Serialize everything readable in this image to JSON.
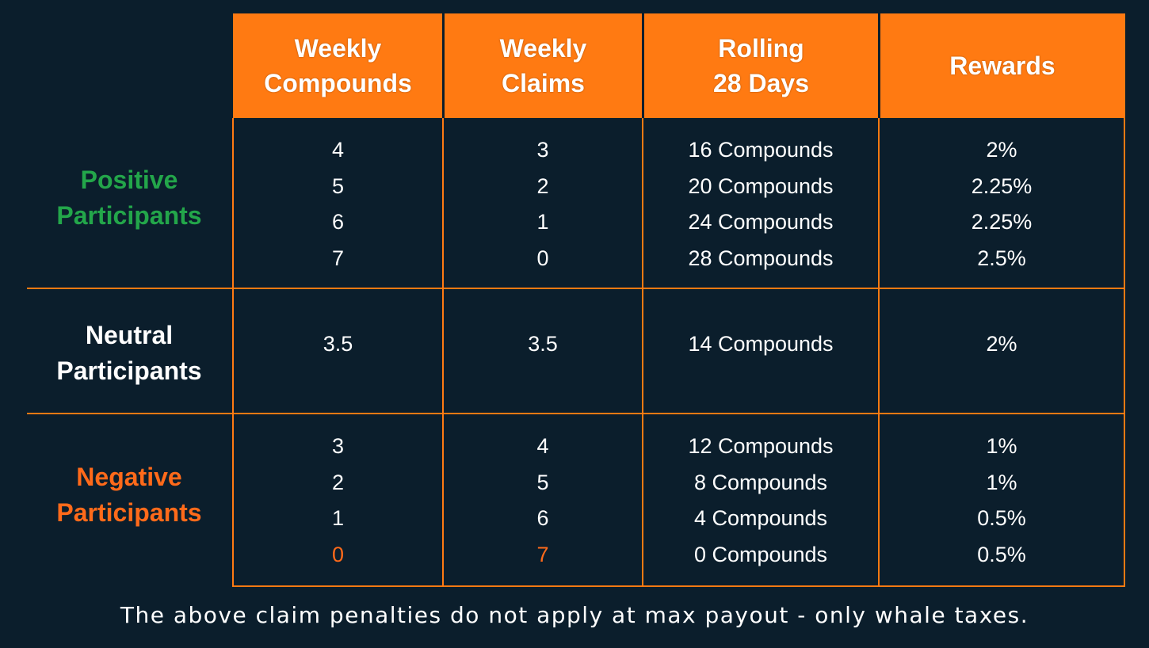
{
  "colors": {
    "background": "#0b1e2c",
    "accent": "#ff7a12",
    "positive": "#23a64a",
    "negative": "#ff6a1a",
    "text": "#ffffff"
  },
  "headers": {
    "weekly_compounds": [
      "Weekly",
      "Compounds"
    ],
    "weekly_claims": [
      "Weekly",
      "Claims"
    ],
    "rolling": [
      "Rolling",
      "28 Days"
    ],
    "rewards": "Rewards"
  },
  "groups": {
    "positive": {
      "label": [
        "Positive",
        "Participants"
      ],
      "weekly_compounds": [
        "4",
        "5",
        "6",
        "7"
      ],
      "weekly_claims": [
        "3",
        "2",
        "1",
        "0"
      ],
      "rolling": [
        "16 Compounds",
        "20 Compounds",
        "24 Compounds",
        "28 Compounds"
      ],
      "rewards": [
        "2%",
        "2.25%",
        "2.25%",
        "2.5%"
      ]
    },
    "neutral": {
      "label": [
        "Neutral",
        "Participants"
      ],
      "weekly_compounds": [
        "3.5"
      ],
      "weekly_claims": [
        "3.5"
      ],
      "rolling": [
        "14 Compounds"
      ],
      "rewards": [
        "2%"
      ]
    },
    "negative": {
      "label": [
        "Negative",
        "Participants"
      ],
      "weekly_compounds": [
        "3",
        "2",
        "1",
        "0"
      ],
      "weekly_claims": [
        "4",
        "5",
        "6",
        "7"
      ],
      "rolling": [
        "12 Compounds",
        "8 Compounds",
        "4 Compounds",
        "0 Compounds"
      ],
      "rewards": [
        "1%",
        "1%",
        "0.5%",
        "0.5%"
      ]
    }
  },
  "footer": "The above claim penalties do not apply at max payout - only whale taxes."
}
